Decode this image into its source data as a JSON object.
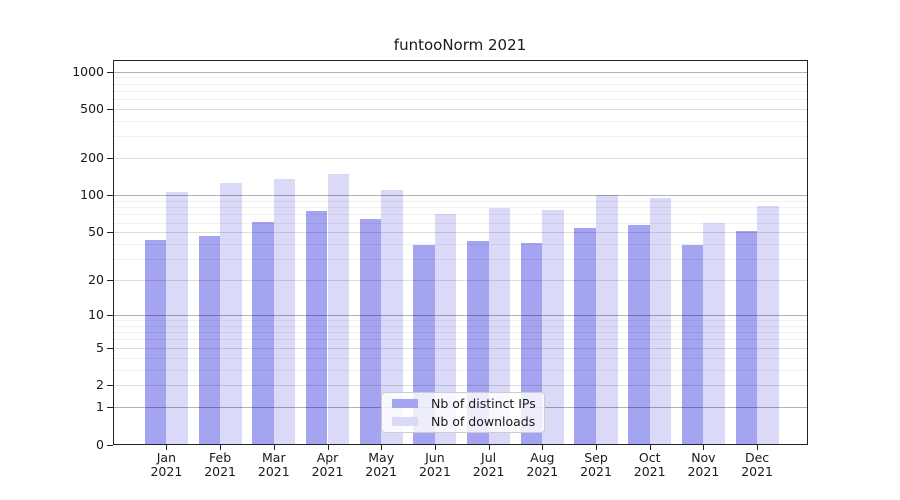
{
  "title": "funtooNorm 2021",
  "chart_data": {
    "type": "bar",
    "title": "funtooNorm 2021",
    "year": "2021",
    "months": [
      "Jan",
      "Feb",
      "Mar",
      "Apr",
      "May",
      "Jun",
      "Jul",
      "Aug",
      "Sep",
      "Oct",
      "Nov",
      "Dec"
    ],
    "categories": [
      "Jan 2021",
      "Feb 2021",
      "Mar 2021",
      "Apr 2021",
      "May 2021",
      "Jun 2021",
      "Jul 2021",
      "Aug 2021",
      "Sep 2021",
      "Oct 2021",
      "Nov 2021",
      "Dec 2021"
    ],
    "series": [
      {
        "name": "Nb of distinct IPs",
        "color": "#a4a4f1",
        "values": [
          43,
          47,
          61,
          74,
          64,
          39,
          42,
          41,
          54,
          57,
          39,
          51
        ]
      },
      {
        "name": "Nb of downloads",
        "color": "#dadaf8",
        "values": [
          106,
          127,
          136,
          150,
          111,
          70,
          79,
          76,
          100,
          96,
          60,
          82
        ]
      }
    ],
    "y_scale": "log1p",
    "y_ticks": [
      0,
      1,
      2,
      5,
      10,
      20,
      50,
      100,
      200,
      500,
      1000
    ],
    "y_minor_ticks": [
      3,
      4,
      6,
      7,
      8,
      9,
      30,
      40,
      60,
      70,
      80,
      90,
      300,
      400,
      600,
      700,
      800,
      900
    ],
    "ylim": [
      0,
      1240
    ],
    "grid": true,
    "legend_position": "lower-center",
    "frame_color": "#222222",
    "background_color": "#ffffff"
  }
}
